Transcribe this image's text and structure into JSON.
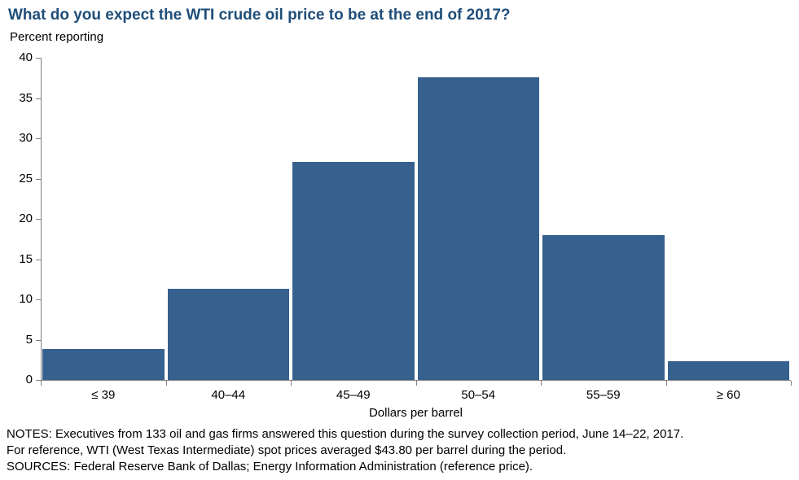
{
  "chart_data": {
    "type": "bar",
    "title": "What do you expect the WTI crude oil price to be at the end of 2017?",
    "ylabel": "Percent reporting",
    "xlabel": "Dollars per barrel",
    "categories": [
      "≤ 39",
      "40–44",
      "45–49",
      "50–54",
      "55–59",
      "≥ 60"
    ],
    "values": [
      3.8,
      11.3,
      27.1,
      37.6,
      18.0,
      2.3
    ],
    "ylim": [
      0,
      40
    ],
    "yticks": [
      0,
      5,
      10,
      15,
      20,
      25,
      30,
      35,
      40
    ],
    "grid": false,
    "legend": "none",
    "bar_color": "#36608e",
    "title_color": "#1f4e79",
    "axis_color": "#808080"
  },
  "notes": [
    "NOTES: Executives from 133 oil and gas firms answered this question during the survey collection period, June 14–22, 2017.",
    "For reference, WTI (West Texas Intermediate) spot prices averaged $43.80 per barrel during the period.",
    "SOURCES: Federal Reserve Bank of Dallas; Energy Information Administration (reference price)."
  ]
}
